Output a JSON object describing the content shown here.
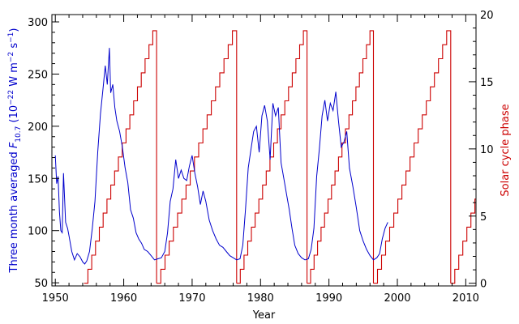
{
  "chart_data": {
    "type": "line",
    "title": "",
    "xlabel": "Year",
    "ylabel_left_prefix": "Three month averaged ",
    "ylabel_left_symbol": "F",
    "ylabel_left_subscript": "10.7",
    "ylabel_left_units_open": " (10",
    "ylabel_left_units_exp1": "−22",
    "ylabel_left_units_mid": " W m",
    "ylabel_left_units_exp2": "−2",
    "ylabel_left_units_s": " s",
    "ylabel_left_units_exp3": "−1",
    "ylabel_left_units_close": ")",
    "ylabel_right": "Solar cycle phase",
    "xlim": [
      1949.5,
      2011.5
    ],
    "ylim_left": [
      47,
      307
    ],
    "ylim_right": [
      -0.2,
      20.0
    ],
    "x_ticks": [
      1950,
      1960,
      1970,
      1980,
      1990,
      2000,
      2010
    ],
    "y_left_ticks": [
      50,
      100,
      150,
      200,
      250,
      300
    ],
    "y_right_ticks": [
      0,
      5,
      10,
      15,
      20
    ],
    "colors": {
      "f107": "#0000cc",
      "phase": "#cc0000",
      "axes": "#000000"
    },
    "series": [
      {
        "axis": "left",
        "x": [
          1950.0,
          1950.2,
          1950.4,
          1950.6,
          1950.8,
          1951.0,
          1951.2,
          1951.5,
          1951.8,
          1952.0,
          1952.4,
          1952.8,
          1953.2,
          1953.6,
          1954.0,
          1954.3,
          1954.6,
          1955.0,
          1955.4,
          1955.8,
          1956.2,
          1956.6,
          1957.0,
          1957.3,
          1957.6,
          1957.9,
          1958.1,
          1958.4,
          1958.7,
          1959.0,
          1959.4,
          1959.8,
          1960.2,
          1960.6,
          1961.0,
          1961.4,
          1961.8,
          1962.2,
          1962.6,
          1963.0,
          1963.5,
          1964.0,
          1964.5,
          1965.0,
          1965.5,
          1966.0,
          1966.4,
          1966.8,
          1967.2,
          1967.6,
          1968.0,
          1968.4,
          1968.8,
          1969.2,
          1969.6,
          1970.0,
          1970.4,
          1970.8,
          1971.2,
          1971.6,
          1972.0,
          1972.5,
          1973.0,
          1973.5,
          1974.0,
          1974.5,
          1975.0,
          1975.5,
          1976.0,
          1976.5,
          1977.0,
          1977.4,
          1977.8,
          1978.2,
          1978.6,
          1979.0,
          1979.4,
          1979.8,
          1980.2,
          1980.6,
          1981.0,
          1981.4,
          1981.8,
          1982.2,
          1982.6,
          1983.0,
          1983.4,
          1983.8,
          1984.2,
          1984.6,
          1985.0,
          1985.5,
          1986.0,
          1986.5,
          1987.0,
          1987.4,
          1987.8,
          1988.2,
          1988.6,
          1989.0,
          1989.4,
          1989.8,
          1990.2,
          1990.6,
          1991.0,
          1991.4,
          1991.8,
          1992.2,
          1992.6,
          1993.0,
          1993.5,
          1994.0,
          1994.5,
          1995.0,
          1995.5,
          1996.0,
          1996.5,
          1997.0,
          1997.4,
          1997.8,
          1998.2,
          1998.6
        ],
        "y": [
          172,
          145,
          152,
          118,
          100,
          98,
          155,
          108,
          102,
          95,
          80,
          72,
          78,
          75,
          70,
          68,
          71,
          80,
          102,
          128,
          175,
          212,
          238,
          258,
          240,
          275,
          232,
          240,
          218,
          205,
          195,
          180,
          160,
          146,
          120,
          112,
          98,
          92,
          88,
          82,
          80,
          76,
          72,
          73,
          74,
          80,
          98,
          128,
          140,
          168,
          150,
          158,
          150,
          148,
          162,
          172,
          155,
          142,
          125,
          138,
          128,
          110,
          100,
          92,
          86,
          84,
          80,
          76,
          74,
          72,
          73,
          86,
          120,
          160,
          178,
          195,
          200,
          175,
          210,
          220,
          205,
          168,
          222,
          210,
          218,
          165,
          150,
          135,
          120,
          102,
          86,
          78,
          74,
          72,
          73,
          82,
          102,
          152,
          178,
          210,
          225,
          205,
          222,
          215,
          233,
          205,
          180,
          185,
          195,
          160,
          142,
          122,
          100,
          90,
          82,
          76,
          72,
          74,
          78,
          92,
          102,
          108
        ]
      },
      {
        "axis": "right",
        "name": "",
        "cycles": [
          {
            "start": 1954.2,
            "end": 1964.8,
            "top": 18.8
          },
          {
            "start": 1964.8,
            "end": 1976.5,
            "top": 18.8
          },
          {
            "start": 1976.5,
            "end": 1986.8,
            "top": 18.8
          },
          {
            "start": 1986.8,
            "end": 1996.5,
            "top": 18.8
          },
          {
            "start": 1996.5,
            "end": 2007.8,
            "top": 18.8
          },
          {
            "start": 2007.8,
            "end": 2019.0,
            "top": 18.8
          }
        ]
      }
    ]
  }
}
